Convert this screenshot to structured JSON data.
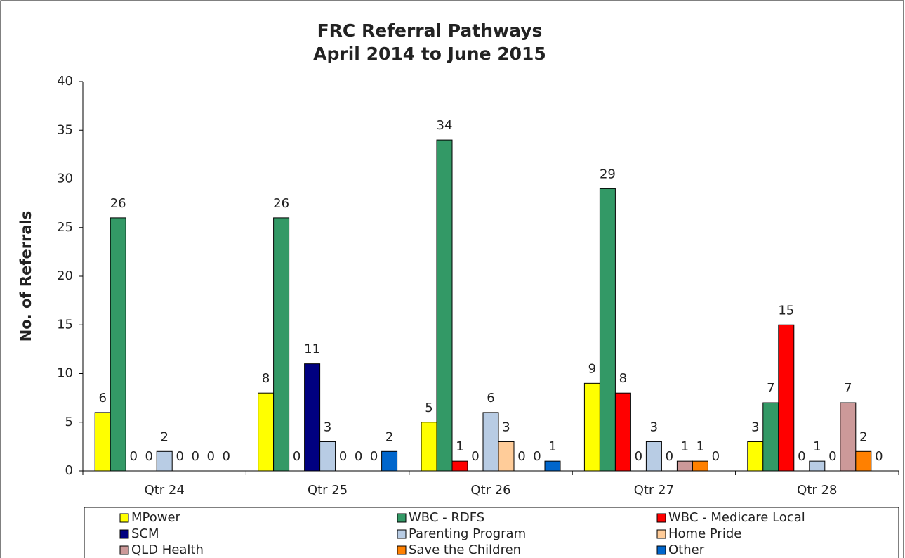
{
  "chart_data": {
    "type": "bar",
    "title": [
      "FRC Referral Pathways",
      "April 2014 to June 2015"
    ],
    "y_label": "No. of Referrals",
    "categories": [
      "Qtr 24",
      "Qtr 25",
      "Qtr 26",
      "Qtr 27",
      "Qtr 28"
    ],
    "series": [
      {
        "name": "MPower",
        "color": "#ffff00",
        "values": [
          6,
          8,
          5,
          9,
          3
        ]
      },
      {
        "name": "WBC - RDFS",
        "color": "#339966",
        "values": [
          26,
          26,
          34,
          29,
          7
        ]
      },
      {
        "name": "WBC - Medicare Local",
        "color": "#ff0000",
        "values": [
          0,
          0,
          1,
          8,
          15
        ]
      },
      {
        "name": "SCM",
        "color": "#000080",
        "values": [
          0,
          11,
          0,
          0,
          0
        ]
      },
      {
        "name": "Parenting Program",
        "color": "#b8cce4",
        "values": [
          2,
          3,
          6,
          3,
          1
        ]
      },
      {
        "name": "Home Pride",
        "color": "#ffcc99",
        "values": [
          0,
          0,
          3,
          0,
          0
        ]
      },
      {
        "name": "QLD Health",
        "color": "#cc9999",
        "values": [
          0,
          0,
          0,
          1,
          7
        ]
      },
      {
        "name": "Save the Children",
        "color": "#ff8000",
        "values": [
          0,
          0,
          0,
          1,
          2
        ]
      },
      {
        "name": "Other",
        "color": "#0066cc",
        "values": [
          0,
          2,
          1,
          0,
          0
        ]
      }
    ],
    "ylim": [
      0,
      40
    ],
    "yticks": [
      0,
      5,
      10,
      15,
      20,
      25,
      30,
      35,
      40
    ],
    "legend": "bottom"
  }
}
